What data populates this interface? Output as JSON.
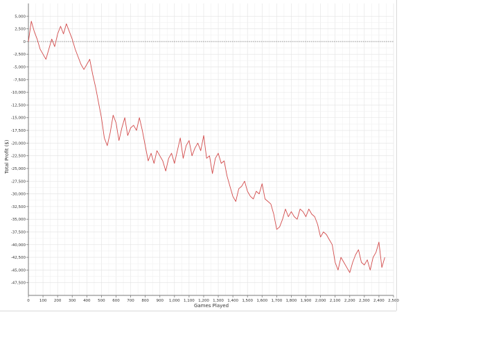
{
  "chart_data": {
    "type": "line",
    "title": "",
    "xlabel": "Games Played",
    "ylabel": "Total Profit ($)",
    "xlim": [
      0,
      2500
    ],
    "ylim": [
      -47500,
      5000
    ],
    "x_ticks": [
      0,
      100,
      200,
      300,
      400,
      500,
      600,
      700,
      800,
      900,
      1000,
      1100,
      1200,
      1300,
      1400,
      1500,
      1600,
      1700,
      1800,
      1900,
      2000,
      2100,
      2200,
      2300,
      2400,
      2500
    ],
    "x_tick_labels": [
      "0",
      "100",
      "200",
      "300",
      "400",
      "500",
      "600",
      "700",
      "800",
      "900",
      "1,000",
      "1,100",
      "1,200",
      "1,300",
      "1,400",
      "1,500",
      "1,600",
      "1,700",
      "1,800",
      "1,900",
      "2,000",
      "2,100",
      "2,200",
      "2,300",
      "2,400",
      "2,500"
    ],
    "y_ticks": [
      5000,
      2500,
      0,
      -2500,
      -5000,
      -7500,
      -10000,
      -12500,
      -15000,
      -17500,
      -20000,
      -22500,
      -25000,
      -27500,
      -30000,
      -32500,
      -35000,
      -37500,
      -40000,
      -42500,
      -45000,
      -47500
    ],
    "y_tick_labels": [
      "5,000",
      "2,500",
      "0",
      "-2,500",
      "-5,000",
      "-7,500",
      "-10,000",
      "-12,500",
      "-15,000",
      "-17,500",
      "-20,000",
      "-22,500",
      "-25,000",
      "-27,500",
      "-30,000",
      "-32,500",
      "-35,000",
      "-37,500",
      "-40,000",
      "-42,500",
      "-45,000",
      "-47,500"
    ],
    "grid": true,
    "zero_line": true,
    "legend": "none",
    "line_color": "#d24a4a",
    "series": [
      {
        "x": [
          0,
          20,
          40,
          60,
          80,
          100,
          120,
          140,
          160,
          180,
          200,
          220,
          240,
          260,
          280,
          300,
          320,
          340,
          360,
          380,
          400,
          420,
          440,
          460,
          480,
          500,
          520,
          540,
          560,
          580,
          600,
          620,
          640,
          660,
          680,
          700,
          720,
          740,
          760,
          780,
          800,
          820,
          840,
          860,
          880,
          900,
          920,
          940,
          960,
          980,
          1000,
          1020,
          1040,
          1060,
          1080,
          1100,
          1120,
          1140,
          1160,
          1180,
          1200,
          1220,
          1240,
          1260,
          1280,
          1300,
          1320,
          1340,
          1360,
          1380,
          1400,
          1420,
          1440,
          1460,
          1480,
          1500,
          1520,
          1540,
          1560,
          1580,
          1600,
          1620,
          1640,
          1660,
          1680,
          1700,
          1720,
          1740,
          1760,
          1780,
          1800,
          1820,
          1840,
          1860,
          1880,
          1900,
          1920,
          1940,
          1960,
          1980,
          2000,
          2020,
          2040,
          2060,
          2080,
          2100,
          2120,
          2140,
          2160,
          2180,
          2200,
          2220,
          2240,
          2260,
          2280,
          2300,
          2320,
          2340,
          2360,
          2380,
          2400,
          2420,
          2440
        ],
        "y": [
          0,
          4000,
          2000,
          500,
          -1500,
          -2500,
          -3500,
          -1500,
          500,
          -1000,
          1500,
          3000,
          1500,
          3500,
          2000,
          500,
          -1500,
          -3000,
          -4500,
          -5500,
          -4500,
          -3500,
          -6500,
          -9000,
          -12000,
          -15000,
          -19000,
          -20500,
          -18000,
          -14500,
          -16000,
          -19500,
          -17000,
          -15000,
          -18500,
          -17000,
          -16500,
          -17500,
          -15000,
          -17500,
          -20500,
          -23500,
          -22000,
          -24000,
          -21500,
          -22500,
          -23500,
          -25500,
          -23000,
          -22000,
          -24000,
          -21500,
          -19000,
          -23000,
          -20500,
          -19500,
          -22500,
          -21000,
          -20000,
          -21500,
          -18500,
          -23000,
          -22500,
          -26000,
          -23000,
          -22000,
          -24000,
          -23500,
          -26500,
          -28500,
          -30500,
          -31500,
          -29000,
          -28500,
          -27500,
          -29500,
          -30500,
          -31000,
          -29500,
          -30000,
          -28000,
          -31000,
          -31500,
          -32000,
          -34000,
          -37000,
          -36500,
          -35000,
          -33000,
          -34500,
          -33500,
          -34500,
          -35000,
          -33000,
          -33500,
          -34500,
          -33000,
          -34000,
          -34500,
          -36000,
          -38500,
          -37500,
          -38000,
          -39000,
          -40000,
          -43500,
          -45000,
          -42500,
          -43500,
          -44500,
          -45500,
          -43500,
          -42000,
          -41000,
          -43500,
          -44000,
          -43000,
          -45000,
          -42500,
          -41500,
          -39500,
          -44500,
          -42500
        ]
      }
    ]
  }
}
